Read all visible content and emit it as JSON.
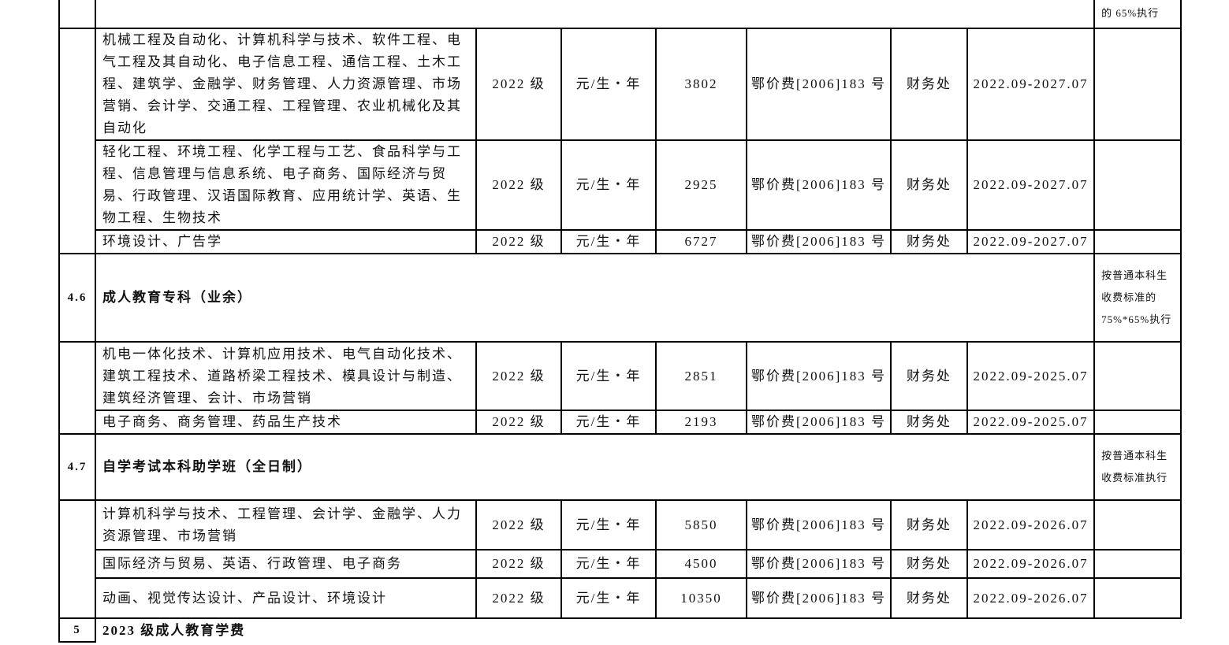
{
  "top_note": "的 65%执行",
  "group_45": [
    {
      "majors": "机械工程及自动化、计算机科学与技术、软件工程、电气工程及其自动化、电子信息工程、通信工程、土木工程、建筑学、金融学、财务管理、人力资源管理、市场营销、会计学、交通工程、工程管理、农业机械化及其自动化",
      "grade": "2022 级",
      "unit": "元/生・年",
      "amount": "3802",
      "doc": "鄂价费[2006]183 号",
      "dept": "财务处",
      "period": "2022.09-2027.07",
      "note": ""
    },
    {
      "majors": "轻化工程、环境工程、化学工程与工艺、食品科学与工程、信息管理与信息系统、电子商务、国际经济与贸易、行政管理、汉语国际教育、应用统计学、英语、生物工程、生物技术",
      "grade": "2022 级",
      "unit": "元/生・年",
      "amount": "2925",
      "doc": "鄂价费[2006]183 号",
      "dept": "财务处",
      "period": "2022.09-2027.07",
      "note": ""
    },
    {
      "majors": "环境设计、广告学",
      "grade": "2022 级",
      "unit": "元/生・年",
      "amount": "6727",
      "doc": "鄂价费[2006]183 号",
      "dept": "财务处",
      "period": "2022.09-2027.07",
      "note": ""
    }
  ],
  "section_46": {
    "num": "4.6",
    "title": "成人教育专科（业余）",
    "note": "按普通本科生收费标准的 75%*65%执行"
  },
  "group_46": [
    {
      "majors": "机电一体化技术、计算机应用技术、电气自动化技术、建筑工程技术、道路桥梁工程技术、模具设计与制造、建筑经济管理、会计、市场营销",
      "grade": "2022 级",
      "unit": "元/生・年",
      "amount": "2851",
      "doc": "鄂价费[2006]183 号",
      "dept": "财务处",
      "period": "2022.09-2025.07",
      "note": ""
    },
    {
      "majors": "电子商务、商务管理、药品生产技术",
      "grade": "2022 级",
      "unit": "元/生・年",
      "amount": "2193",
      "doc": "鄂价费[2006]183 号",
      "dept": "财务处",
      "period": "2022.09-2025.07",
      "note": ""
    }
  ],
  "section_47": {
    "num": "4.7",
    "title": "自学考试本科助学班（全日制）",
    "note": "按普通本科生收费标准执行"
  },
  "group_47": [
    {
      "majors": "计算机科学与技术、工程管理、会计学、金融学、人力资源管理、市场营销",
      "grade": "2022 级",
      "unit": "元/生・年",
      "amount": "5850",
      "doc": "鄂价费[2006]183 号",
      "dept": "财务处",
      "period": "2022.09-2026.07",
      "note": ""
    },
    {
      "majors": "国际经济与贸易、英语、行政管理、电子商务",
      "grade": "2022 级",
      "unit": "元/生・年",
      "amount": "4500",
      "doc": "鄂价费[2006]183 号",
      "dept": "财务处",
      "period": "2022.09-2026.07",
      "note": ""
    },
    {
      "majors": "动画、视觉传达设计、产品设计、环境设计",
      "grade": "2022 级",
      "unit": "元/生・年",
      "amount": "10350",
      "doc": "鄂价费[2006]183 号",
      "dept": "财务处",
      "period": "2022.09-2026.07",
      "note": ""
    }
  ],
  "section_5": {
    "num": "5",
    "title": "2023 级成人教育学费"
  }
}
